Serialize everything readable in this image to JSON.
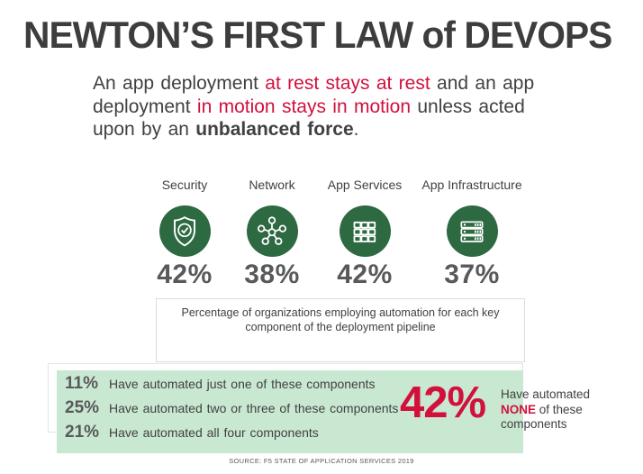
{
  "title": "NEWTON’S FIRST LAW of DEVOPS",
  "statement": {
    "segments": [
      {
        "text": "An app deployment ",
        "style": "normal"
      },
      {
        "text": "at rest stays at rest",
        "style": "red"
      },
      {
        "text": " and an app",
        "style": "normal",
        "break": true
      },
      {
        "text": "deployment ",
        "style": "normal"
      },
      {
        "text": "in motion stays in motion",
        "style": "red"
      },
      {
        "text": " unless acted",
        "style": "normal",
        "break": true
      },
      {
        "text": "upon by an ",
        "style": "normal"
      },
      {
        "text": "unbalanced force",
        "style": "bold"
      },
      {
        "text": ".",
        "style": "normal"
      }
    ]
  },
  "metrics": {
    "items": [
      {
        "label": "Security",
        "value": "42%",
        "icon": "shield-check-icon"
      },
      {
        "label": "Network",
        "value": "38%",
        "icon": "network-hub-icon"
      },
      {
        "label": "App Services",
        "value": "42%",
        "icon": "app-grid-icon"
      },
      {
        "label": "App Infrastructure",
        "value": "37%",
        "icon": "server-stack-icon"
      }
    ],
    "caption": "Percentage of organizations employing automation for each key component of the deployment pipeline"
  },
  "summary": {
    "rows": [
      {
        "value": "11%",
        "text": "Have automated just one of these components"
      },
      {
        "value": "25%",
        "text": "Have automated two or three of these components"
      },
      {
        "value": "21%",
        "text": "Have automated all four components"
      }
    ],
    "highlight": {
      "value": "42%",
      "segments": [
        {
          "text": "Have automated",
          "style": "normal",
          "break": true
        },
        {
          "text": "NONE",
          "style": "red-bold"
        },
        {
          "text": " of these",
          "style": "normal",
          "break": true
        },
        {
          "text": "components",
          "style": "normal"
        }
      ]
    }
  },
  "source": "SOURCE: F5 STATE OF APPLICATION SERVICES 2019",
  "colors": {
    "accent_red": "#d2103c",
    "icon_green": "#2d6941",
    "panel_mint": "#c9e8d2",
    "text_dark": "#414042",
    "value_gray": "#58595b"
  },
  "chart_data": [
    {
      "type": "bar",
      "title": "Percentage of organizations employing automation for each key component of the deployment pipeline",
      "categories": [
        "Security",
        "Network",
        "App Services",
        "App Infrastructure"
      ],
      "values": [
        42,
        38,
        42,
        37
      ],
      "unit": "%"
    },
    {
      "type": "bar",
      "title": "",
      "categories": [
        "Have automated just one of these components",
        "Have automated two or three of these components",
        "Have automated all four components",
        "Have automated NONE of these components"
      ],
      "values": [
        11,
        25,
        21,
        42
      ],
      "unit": "%"
    }
  ]
}
